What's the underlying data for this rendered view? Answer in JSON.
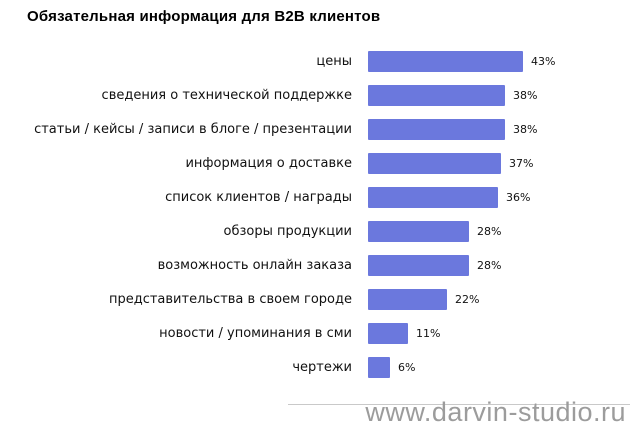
{
  "title": "Обязательная информация для B2B клиентов",
  "watermark": "www.darvin-studio.ru",
  "chart_data": {
    "type": "bar",
    "orientation": "horizontal",
    "title": "Обязательная информация для B2B клиентов",
    "categories": [
      "цены",
      "сведения о технической поддержке",
      "статьи / кейсы / записи в блоге / презентации",
      "информация о доставке",
      "список клиентов / награды",
      "обзоры продукции",
      "возможность онлайн заказа",
      "представительства в своем городе",
      "новости / упоминания в сми",
      "чертежи"
    ],
    "values": [
      43,
      38,
      38,
      37,
      36,
      28,
      28,
      22,
      11,
      6
    ],
    "value_suffix": "%",
    "bar_color": "#6b78dd",
    "xlim": [
      0,
      45
    ],
    "grid": false,
    "legend": false
  }
}
